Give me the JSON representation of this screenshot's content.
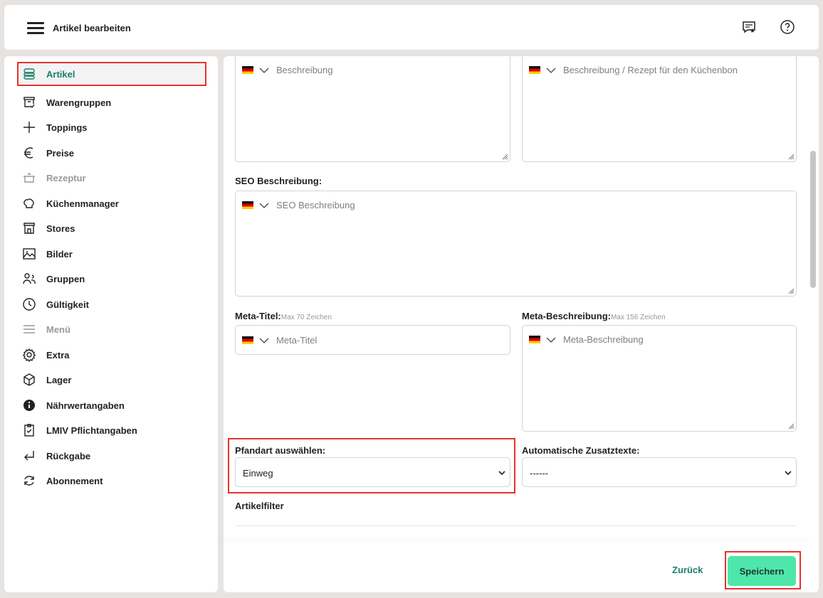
{
  "header": {
    "title": "Artikel bearbeiten",
    "icons": [
      "menu-icon",
      "feedback-icon",
      "help-icon"
    ]
  },
  "sidebar": {
    "items": [
      {
        "label": "Artikel",
        "icon": "burger-icon",
        "active": true
      },
      {
        "label": "Warengruppen",
        "icon": "archive-icon"
      },
      {
        "label": "Toppings",
        "icon": "plus-icon"
      },
      {
        "label": "Preise",
        "icon": "euro-icon"
      },
      {
        "label": "Rezeptur",
        "icon": "pot-icon",
        "disabled": true
      },
      {
        "label": "Küchenmanager",
        "icon": "chef-hat-icon"
      },
      {
        "label": "Stores",
        "icon": "store-icon"
      },
      {
        "label": "Bilder",
        "icon": "image-icon"
      },
      {
        "label": "Gruppen",
        "icon": "users-icon"
      },
      {
        "label": "Gültigkeit",
        "icon": "clock-icon"
      },
      {
        "label": "Menü",
        "icon": "list-icon",
        "disabled": true
      },
      {
        "label": "Extra",
        "icon": "gear-icon"
      },
      {
        "label": "Lager",
        "icon": "box-icon"
      },
      {
        "label": "Nährwertangaben",
        "icon": "info-icon"
      },
      {
        "label": "LMIV Pflichtangaben",
        "icon": "clipboard-icon"
      },
      {
        "label": "Rückgabe",
        "icon": "return-icon"
      },
      {
        "label": "Abonnement",
        "icon": "refresh-icon"
      }
    ]
  },
  "form": {
    "beschreibung_placeholder": "Beschreibung",
    "kuechenbon_placeholder": "Beschreibung / Rezept für den Küchenbon",
    "seo_label": "SEO Beschreibung:",
    "seo_placeholder": "SEO Beschreibung",
    "meta_title_label": "Meta-Titel:",
    "meta_title_hint": "Max 70 Zeichen",
    "meta_title_placeholder": "Meta-Titel",
    "meta_desc_label": "Meta-Beschreibung:",
    "meta_desc_hint": "Max 156 Zeichen",
    "meta_desc_placeholder": "Meta-Beschreibung",
    "pfand_label": "Pfandart auswählen:",
    "pfand_value": "Einweg",
    "zusatz_label": "Automatische Zusatztexte:",
    "zusatz_value": "------",
    "artikelfilter_label": "Artikelfilter"
  },
  "footer": {
    "back_label": "Zurück",
    "save_label": "Speichern"
  },
  "colors": {
    "accent": "#1a7f6a",
    "save": "#4ee6aa",
    "highlight": "#e8322a"
  }
}
